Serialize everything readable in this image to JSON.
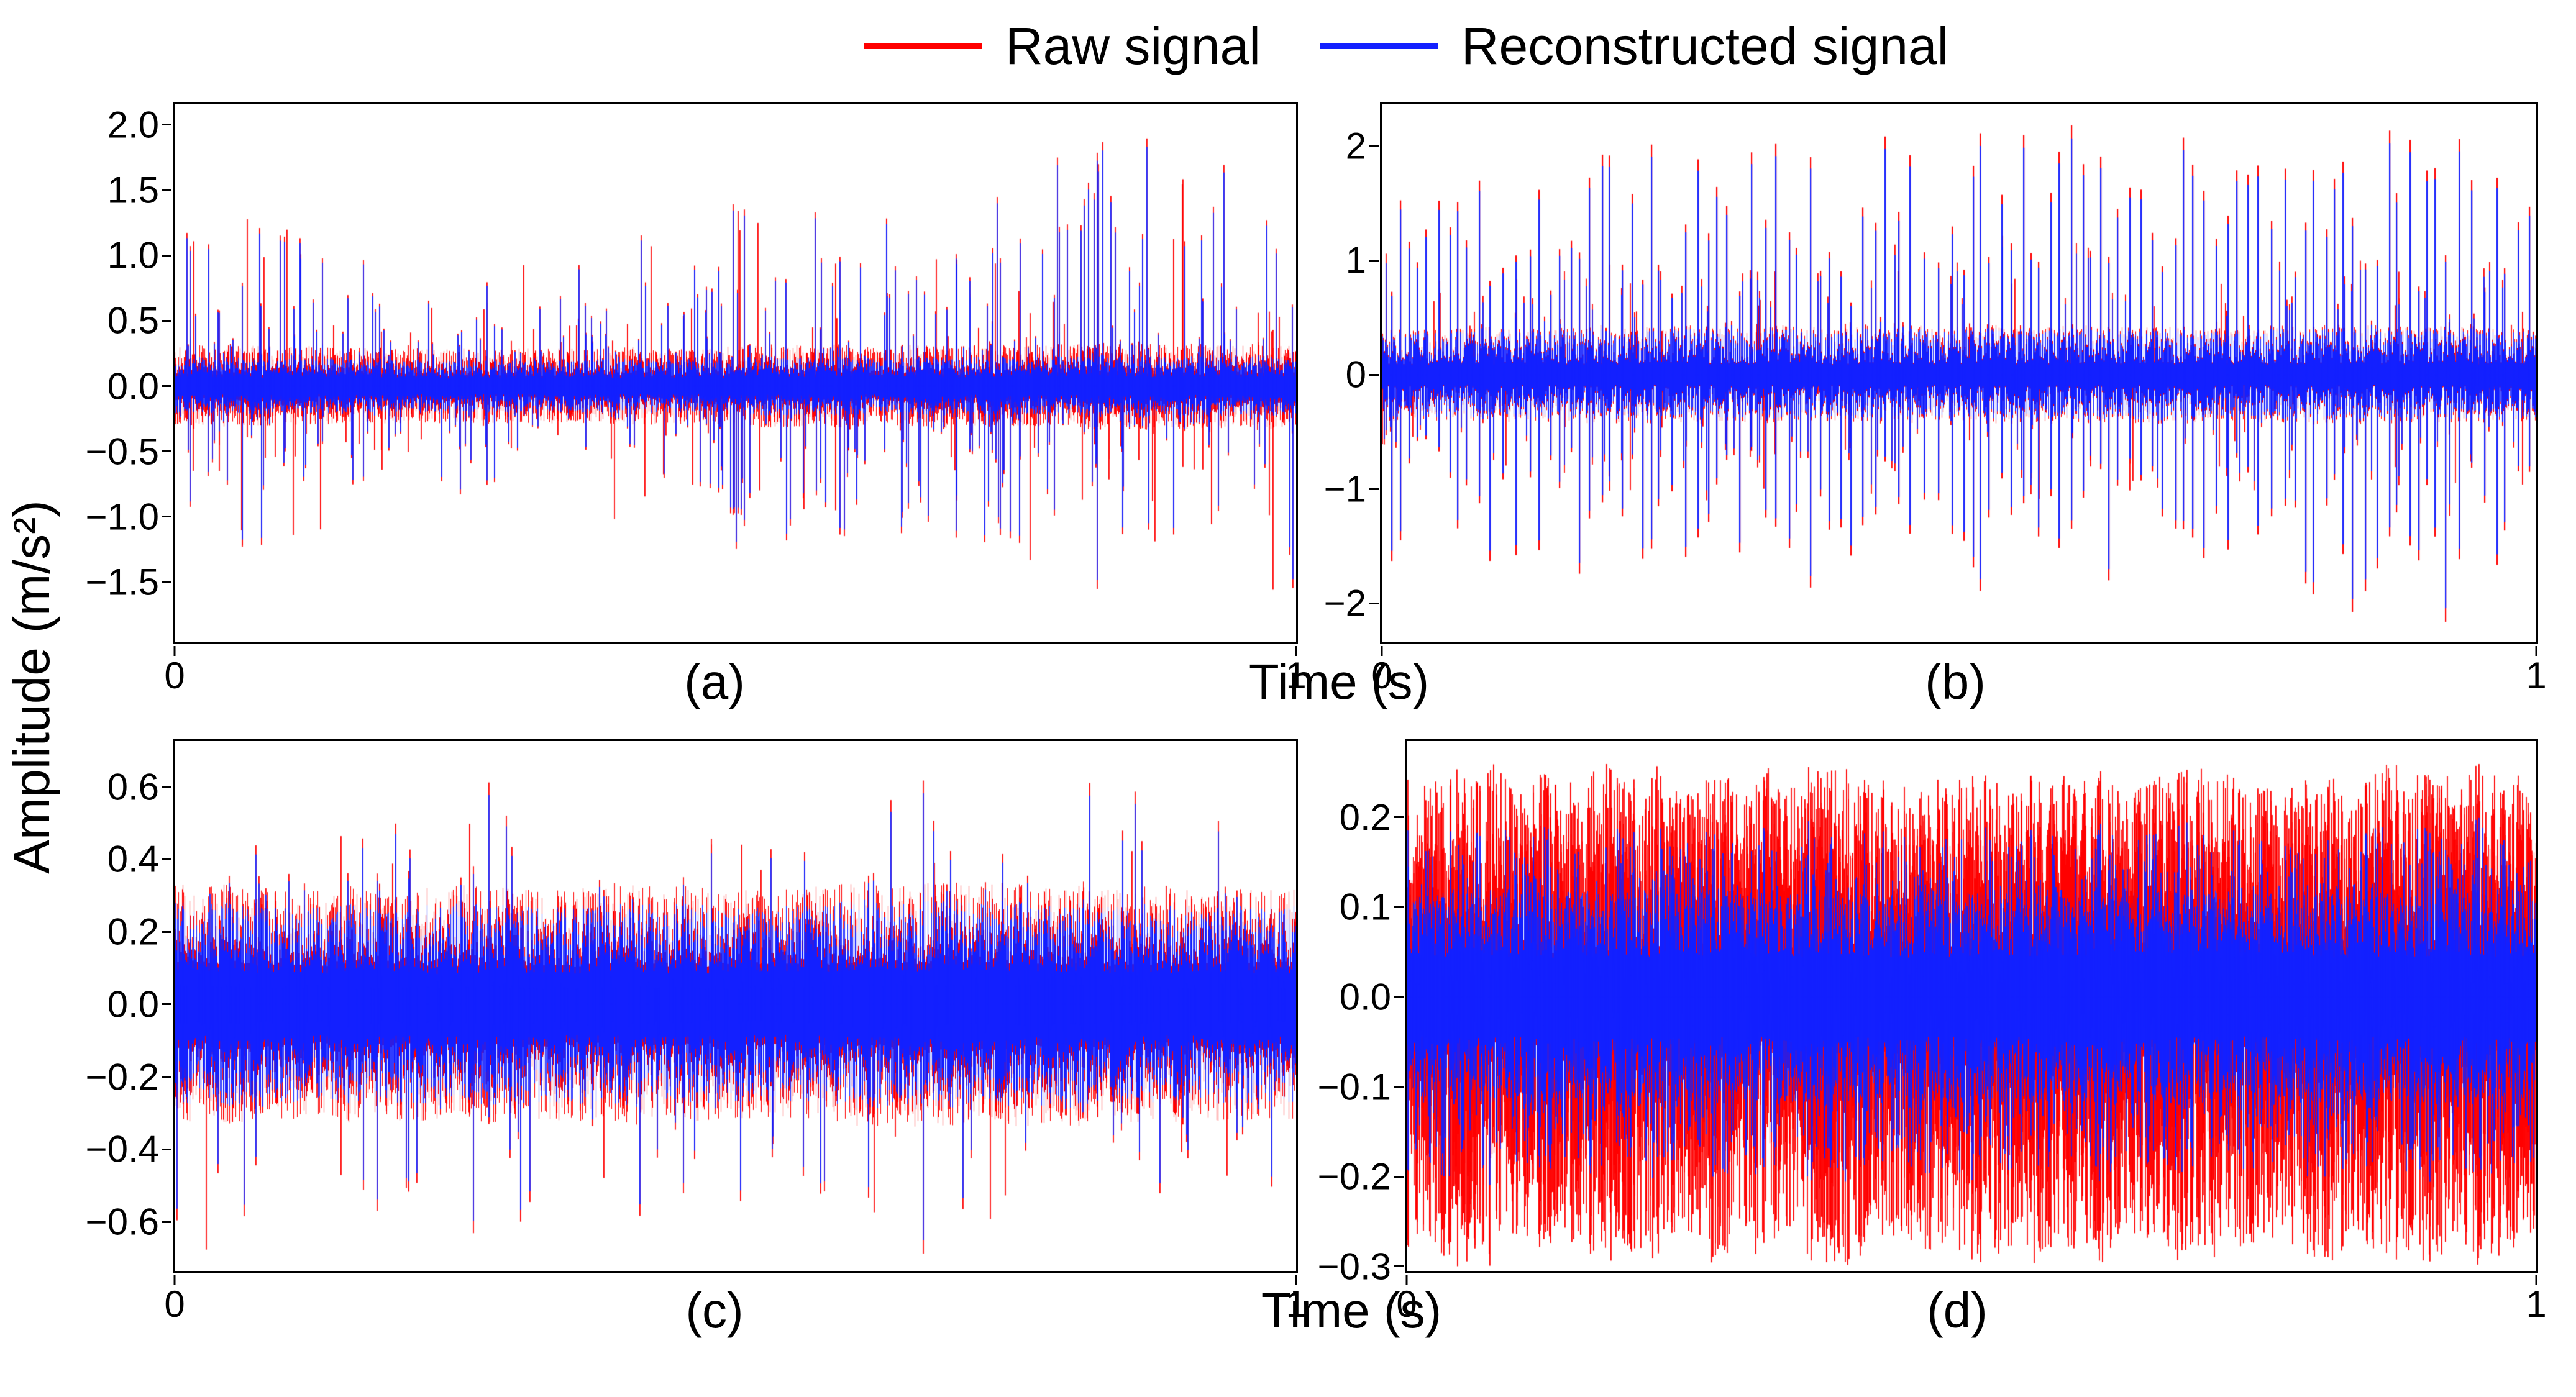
{
  "legend": {
    "raw_label": "Raw signal",
    "recon_label": "Reconstructed signal"
  },
  "colors": {
    "raw": "#ff0000",
    "recon": "#1320ff",
    "axis": "#000000",
    "background": "#ffffff"
  },
  "ylabel": "Amplitude (m/s²)",
  "xlabel": "Time (s)",
  "chart_data": [
    {
      "id": "a",
      "panel_label": "(a)",
      "type": "line",
      "xlabel": "Time (s)",
      "xlim": [
        0,
        1
      ],
      "xtick_labels": [
        "0",
        "1"
      ],
      "ylim": [
        -1.96,
        2.16
      ],
      "yticks": [
        2.0,
        1.5,
        1.0,
        0.5,
        0.0,
        -0.5,
        -1.0,
        -1.5
      ],
      "ytick_labels": [
        "2.0",
        "1.5",
        "1.0",
        "0.5",
        "0.0",
        "−0.5",
        "−1.0",
        "−1.5"
      ],
      "legend_position": "none",
      "grid": false,
      "seed": 11,
      "env_var": 0.55,
      "series": [
        {
          "name": "Raw signal",
          "color_key": "raw",
          "band": [
            0.09,
            0.34
          ],
          "hairs": {
            "count": 950,
            "up": 2.05,
            "down": 1.8,
            "pk": 7
          }
        },
        {
          "name": "Reconstructed signal",
          "color_key": "recon",
          "band": [
            0.07,
            0.24
          ],
          "hairs": {
            "count": 720,
            "up": 1.98,
            "down": 1.72,
            "pk": 7
          }
        }
      ]
    },
    {
      "id": "b",
      "panel_label": "(b)",
      "type": "line",
      "xlabel": "Time (s)",
      "xlim": [
        0,
        1
      ],
      "xtick_labels": [
        "0",
        "1"
      ],
      "ylim": [
        -2.34,
        2.37
      ],
      "yticks": [
        2,
        1,
        0,
        -1,
        -2
      ],
      "ytick_labels": [
        "2",
        "1",
        "0",
        "−1",
        "−2"
      ],
      "legend_position": "none",
      "grid": false,
      "seed": 77,
      "env_var": 0.3,
      "series": [
        {
          "name": "Raw signal",
          "color_key": "raw",
          "band": [
            0.1,
            0.44
          ],
          "periodic": {
            "period": 17,
            "jitter": 12,
            "up": 2.28,
            "down": 2.18
          },
          "hairs": {
            "count": 260,
            "up": 1.25,
            "down": 1.25,
            "pk": 2
          }
        },
        {
          "name": "Reconstructed signal",
          "color_key": "recon",
          "band": [
            0.09,
            0.41
          ],
          "periodic": {
            "period": 17,
            "jitter": 12,
            "up": 2.16,
            "down": 2.06
          },
          "hairs": {
            "count": 200,
            "up": 1.15,
            "down": 1.15,
            "pk": 2
          }
        }
      ]
    },
    {
      "id": "c",
      "panel_label": "(c)",
      "type": "line",
      "xlabel": "Time (s)",
      "xlim": [
        0,
        1
      ],
      "xtick_labels": [
        "0",
        "1"
      ],
      "ylim": [
        -0.735,
        0.726
      ],
      "yticks": [
        0.6,
        0.4,
        0.2,
        0.0,
        -0.2,
        -0.4,
        -0.6
      ],
      "ytick_labels": [
        "0.6",
        "0.4",
        "0.2",
        "0.0",
        "−0.2",
        "−0.4",
        "−0.6"
      ],
      "legend_position": "none",
      "grid": false,
      "seed": 5,
      "env_var": 0.22,
      "series": [
        {
          "name": "Raw signal",
          "color_key": "raw",
          "band": [
            0.11,
            0.34
          ],
          "hairs": {
            "count": 420,
            "up": 0.7,
            "down": 0.74,
            "pk": 6
          }
        },
        {
          "name": "Reconstructed signal",
          "color_key": "recon",
          "band": [
            0.09,
            0.29
          ],
          "hairs": {
            "count": 340,
            "up": 0.66,
            "down": 0.7,
            "pk": 6
          }
        }
      ]
    },
    {
      "id": "d",
      "panel_label": "(d)",
      "type": "line",
      "xlabel": "Time (s)",
      "xlim": [
        0,
        1
      ],
      "xtick_labels": [
        "0",
        "1"
      ],
      "ylim": [
        -0.305,
        0.285
      ],
      "yticks": [
        0.2,
        0.1,
        0.0,
        -0.1,
        -0.2,
        -0.3
      ],
      "ytick_labels": [
        "0.2",
        "0.1",
        "0.0",
        "−0.1",
        "−0.2",
        "−0.3"
      ],
      "legend_position": "none",
      "grid": false,
      "seed": 99,
      "env_var": 0.12,
      "series": [
        {
          "name": "Raw signal",
          "color_key": "raw",
          "band": [
            0.05,
            0.18
          ],
          "hairs": {
            "count": 4200,
            "up": 0.26,
            "down": 0.3,
            "pk": 1.4
          }
        },
        {
          "name": "Reconstructed signal",
          "color_key": "recon",
          "band": [
            0.045,
            0.12
          ],
          "hairs": {
            "count": 1500,
            "up": 0.2,
            "down": 0.21,
            "pk": 1.9
          }
        }
      ]
    }
  ]
}
